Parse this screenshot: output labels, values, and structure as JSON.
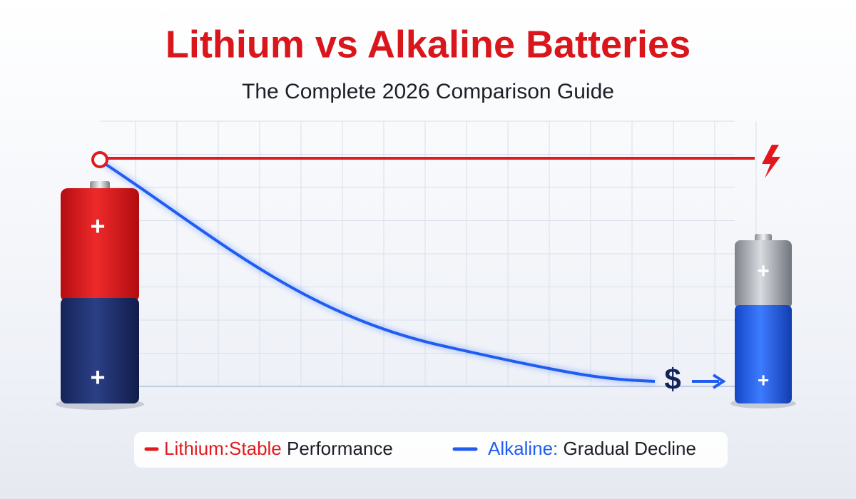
{
  "header": {
    "title": "Lithium vs Alkaline Batteries",
    "subtitle": "The Complete 2026 Comparison Guide"
  },
  "batteries": [
    {
      "top": "+",
      "bottom": "+"
    },
    {
      "top": "+",
      "bottom": "+"
    }
  ],
  "cost_icon": "$",
  "legend": [
    {
      "label": "Lithium:Stable",
      "detail": "Performance"
    },
    {
      "label": "Alkaline:",
      "detail": "Gradual Decline"
    }
  ]
}
